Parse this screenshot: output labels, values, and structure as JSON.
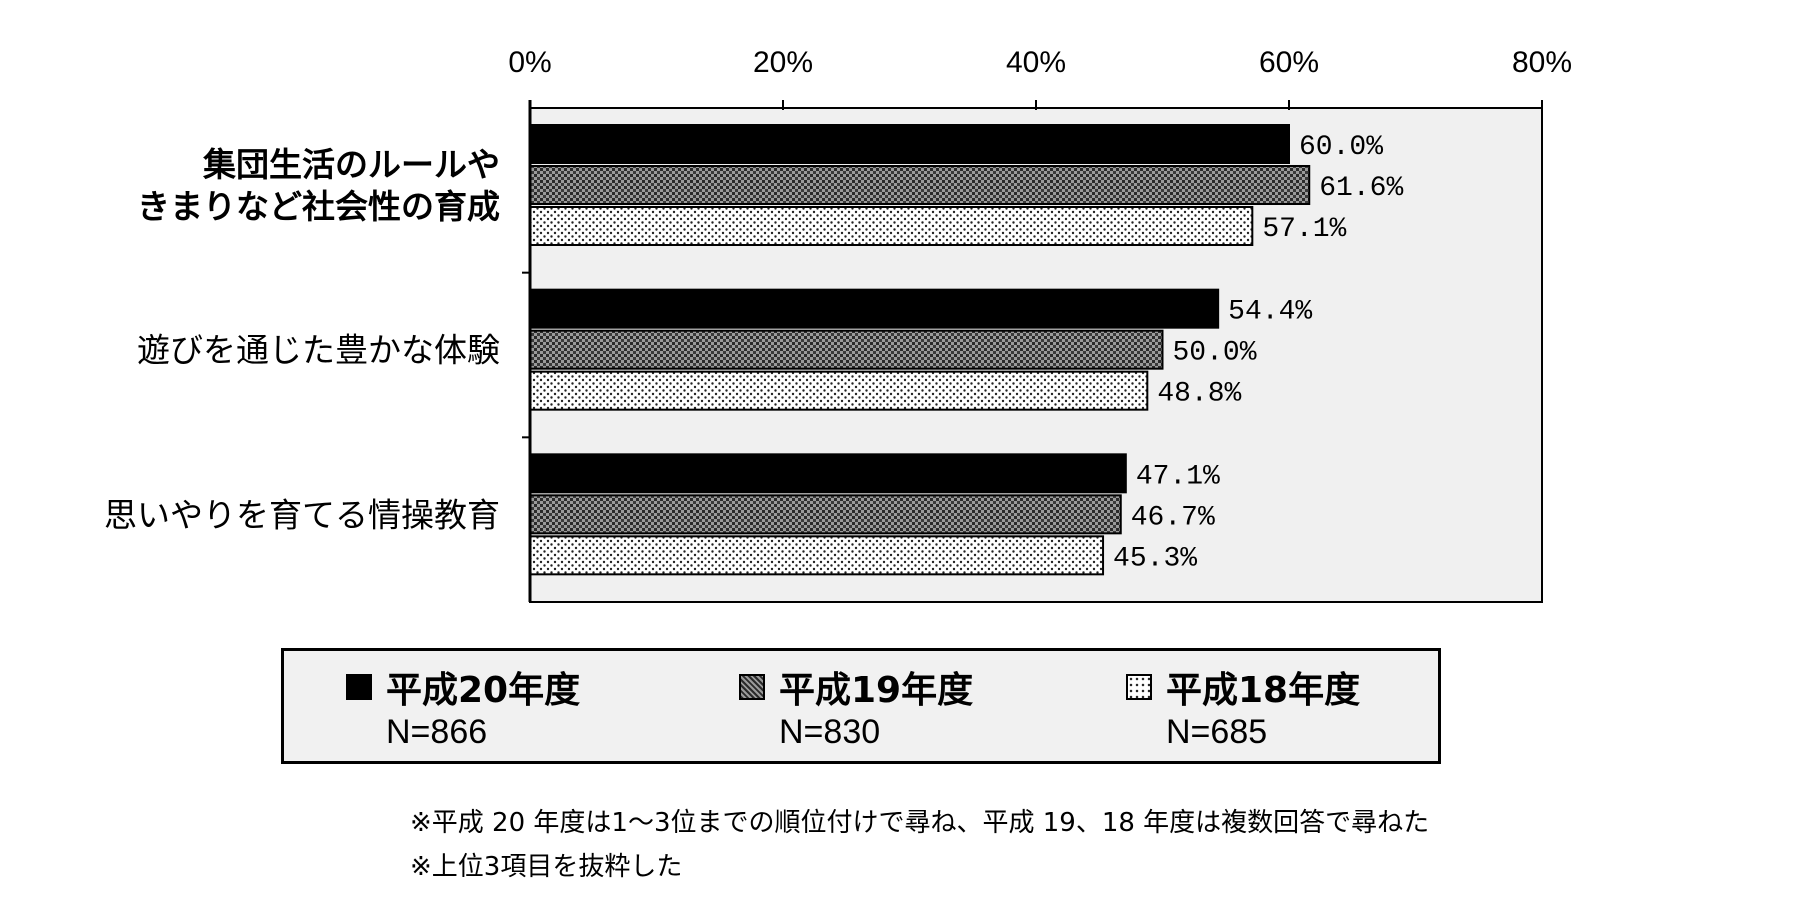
{
  "chart_data": {
    "type": "bar",
    "orientation": "horizontal",
    "categories": [
      [
        "集団生活のルールや",
        "きまりなど社会性の育成"
      ],
      [
        "遊びを通じた豊かな体験"
      ],
      [
        "思いやりを育てる情操教育"
      ]
    ],
    "series": [
      {
        "name": "平成20年度",
        "n_label": "N=866",
        "values": [
          60.0,
          54.4,
          47.1
        ],
        "labels": [
          "60.0%",
          "54.4%",
          "47.1%"
        ],
        "pattern": "solid-black"
      },
      {
        "name": "平成19年度",
        "n_label": "N=830",
        "values": [
          61.6,
          50.0,
          46.7
        ],
        "labels": [
          "61.6%",
          "50.0%",
          "46.7%"
        ],
        "pattern": "dark-crosshatch"
      },
      {
        "name": "平成18年度",
        "n_label": "N=685",
        "values": [
          57.1,
          48.8,
          45.3
        ],
        "labels": [
          "57.1%",
          "48.8%",
          "45.3%"
        ],
        "pattern": "light-dots"
      }
    ],
    "x_ticks": [
      "0%",
      "20%",
      "40%",
      "60%",
      "80%"
    ],
    "xlim": [
      0,
      80
    ],
    "axis_position": "top",
    "legend_position": "bottom",
    "grid": false
  },
  "notes": [
    "※平成 20 年度は1～3位までの順位付けで尋ね、平成 19、18 年度は複数回答で尋ねた",
    "※上位3項目を抜粋した"
  ],
  "colors": {
    "plot_bg": "#f0f0f0",
    "bar_solid": "#000000",
    "bar_hatch": "#5a5a5a",
    "bar_dots": "#ffffff"
  }
}
